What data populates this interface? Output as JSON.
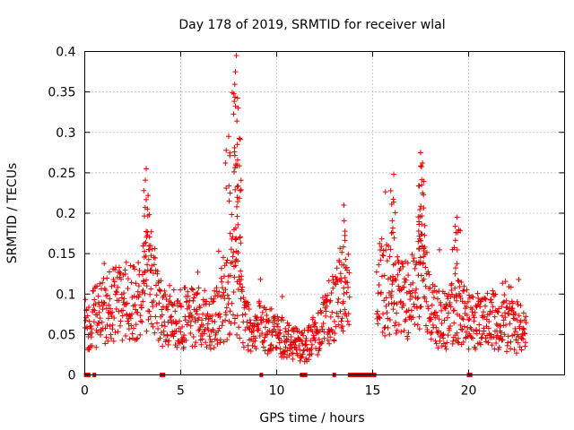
{
  "chart_data": {
    "type": "scatter",
    "title": "Day 178 of 2019, SRMTID for receiver wlal",
    "xlabel": "GPS time / hours",
    "ylabel": "SRMTID / TECUs",
    "xlim": [
      0,
      25
    ],
    "ylim": [
      0,
      0.4
    ],
    "grid": true,
    "marker": "+",
    "color": "#e00000",
    "x_ticks": [
      {
        "value": 0,
        "label": "0"
      },
      {
        "value": 5,
        "label": "5"
      },
      {
        "value": 10,
        "label": "10"
      },
      {
        "value": 15,
        "label": "15"
      },
      {
        "value": 20,
        "label": "20"
      }
    ],
    "y_ticks": [
      {
        "value": 0,
        "label": "0"
      },
      {
        "value": 0.05,
        "label": "0.05"
      },
      {
        "value": 0.1,
        "label": "0.1"
      },
      {
        "value": 0.15,
        "label": "0.15"
      },
      {
        "value": 0.2,
        "label": "0.2"
      },
      {
        "value": 0.25,
        "label": "0.25"
      },
      {
        "value": 0.3,
        "label": "0.3"
      },
      {
        "value": 0.35,
        "label": "0.35"
      },
      {
        "value": 0.4,
        "label": "0.4"
      }
    ],
    "series": [
      {
        "name": "SRMTID",
        "envelope_hours": [
          0,
          0.5,
          1,
          1.5,
          2,
          2.5,
          3,
          3.2,
          3.5,
          4,
          4.5,
          5,
          5.5,
          6,
          6.5,
          7,
          7.5,
          7.8,
          8,
          8.3,
          8.6,
          9,
          9.5,
          10,
          10.5,
          11,
          11.5,
          12,
          12.5,
          13,
          13.5,
          13.8,
          15.2,
          15.5,
          16,
          16.5,
          17,
          17.5,
          17.7,
          18,
          18.5,
          19,
          19.5,
          20,
          20.5,
          21,
          21.5,
          22,
          22.5,
          23
        ],
        "envelope_typical": [
          0.06,
          0.07,
          0.08,
          0.085,
          0.09,
          0.09,
          0.1,
          0.12,
          0.11,
          0.08,
          0.07,
          0.07,
          0.07,
          0.065,
          0.07,
          0.08,
          0.1,
          0.12,
          0.1,
          0.07,
          0.06,
          0.06,
          0.055,
          0.05,
          0.045,
          0.04,
          0.035,
          0.05,
          0.07,
          0.09,
          0.11,
          0.1,
          0.1,
          0.11,
          0.1,
          0.09,
          0.1,
          0.11,
          0.12,
          0.08,
          0.07,
          0.07,
          0.085,
          0.065,
          0.065,
          0.07,
          0.065,
          0.06,
          0.06,
          0.055
        ],
        "peaks": [
          {
            "x": 3.2,
            "y": 0.255
          },
          {
            "x": 3.3,
            "y": 0.222
          },
          {
            "x": 7.5,
            "y": 0.295
          },
          {
            "x": 7.9,
            "y": 0.395
          },
          {
            "x": 7.85,
            "y": 0.375
          },
          {
            "x": 8.0,
            "y": 0.33
          },
          {
            "x": 7.95,
            "y": 0.285
          },
          {
            "x": 13.5,
            "y": 0.21
          },
          {
            "x": 16.1,
            "y": 0.248
          },
          {
            "x": 17.5,
            "y": 0.275
          },
          {
            "x": 17.6,
            "y": 0.262
          },
          {
            "x": 17.55,
            "y": 0.235
          },
          {
            "x": 19.4,
            "y": 0.195
          }
        ],
        "zero_hours": [
          0.05,
          0.2,
          0.5,
          4.0,
          4.1,
          9.2,
          11.3,
          11.4,
          11.5,
          13.0,
          13.8,
          13.9,
          14.0,
          14.1,
          14.2,
          14.3,
          14.4,
          14.5,
          14.6,
          14.7,
          14.8,
          14.9,
          15.0,
          15.1,
          20.0,
          20.1
        ]
      }
    ]
  }
}
